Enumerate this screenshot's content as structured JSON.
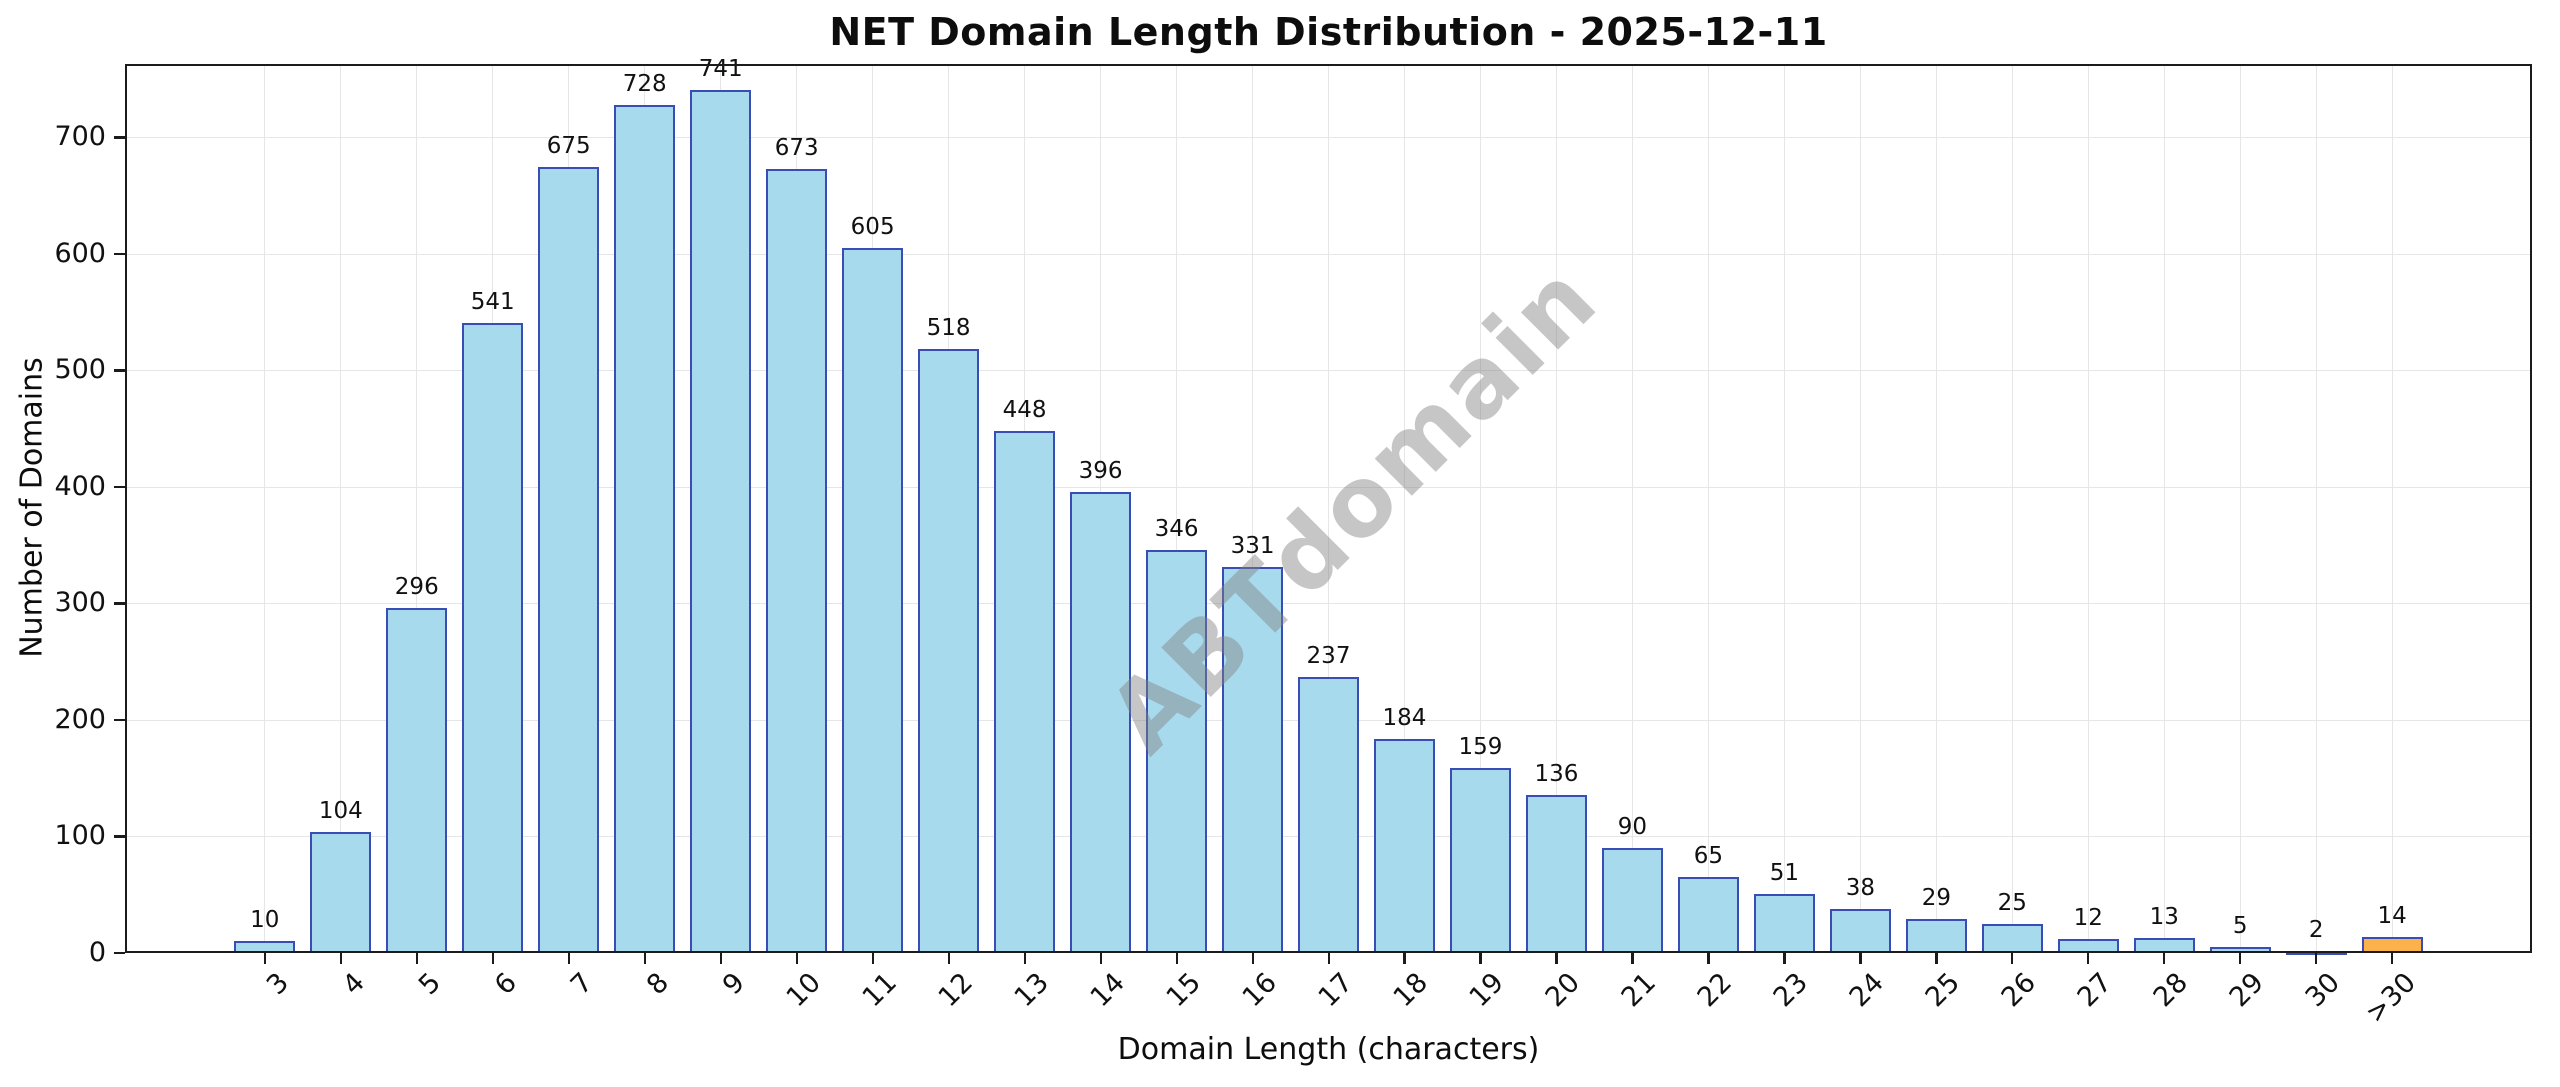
{
  "title": "NET Domain Length Distribution - 2025-12-11",
  "watermark": "ABTdomain",
  "chart_data": {
    "type": "bar",
    "title": "NET Domain Length Distribution - 2025-12-11",
    "xlabel": "Domain Length (characters)",
    "ylabel": "Number of Domains",
    "categories": [
      "3",
      "4",
      "5",
      "6",
      "7",
      "8",
      "9",
      "10",
      "11",
      "12",
      "13",
      "14",
      "15",
      "16",
      "17",
      "18",
      "19",
      "20",
      "21",
      "22",
      "23",
      "24",
      "25",
      "26",
      "27",
      "28",
      "29",
      "30",
      ">30"
    ],
    "values": [
      10,
      104,
      296,
      541,
      675,
      728,
      741,
      673,
      605,
      518,
      448,
      396,
      346,
      331,
      237,
      184,
      159,
      136,
      90,
      65,
      51,
      38,
      29,
      25,
      12,
      13,
      5,
      2,
      14
    ],
    "value_labels_shown": true,
    "yticks": [
      0,
      100,
      200,
      300,
      400,
      500,
      600,
      700
    ],
    "ylim": [
      0,
      763
    ],
    "xlim": [
      -1.84,
      29.84
    ],
    "bar_width_units": 0.8,
    "grid": "both",
    "colors": {
      "bar_fill": "#a8daed",
      "bar_fill_last": "#fbb24b",
      "bar_edge": "#3a4db5",
      "grid": "#e6e6e6",
      "spine": "#1b1b1b",
      "text": "#111111",
      "watermark": "rgba(128,128,128,0.45)"
    }
  }
}
